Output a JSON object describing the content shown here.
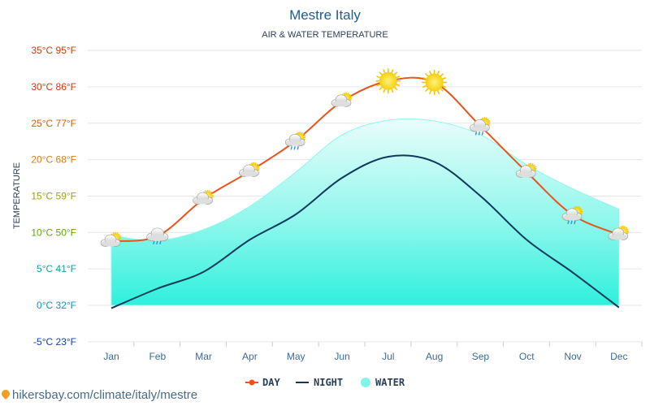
{
  "chart_data": {
    "type": "line",
    "title": "Mestre Italy",
    "subtitle": "AIR & WATER TEMPERATURE",
    "ylabel": "TEMPERATURE",
    "ylim": [
      -5,
      35
    ],
    "yticks": [
      {
        "value": 35,
        "label": "35°C 95°F",
        "color": "#d43a0a"
      },
      {
        "value": 30,
        "label": "30°C 86°F",
        "color": "#d43a0a"
      },
      {
        "value": 25,
        "label": "25°C 77°F",
        "color": "#e05a0a"
      },
      {
        "value": 20,
        "label": "20°C 68°F",
        "color": "#e07a10"
      },
      {
        "value": 15,
        "label": "15°C 59°F",
        "color": "#a0a010"
      },
      {
        "value": 10,
        "label": "10°C 50°F",
        "color": "#6aa010"
      },
      {
        "value": 5,
        "label": "5°C 41°F",
        "color": "#10a0a0"
      },
      {
        "value": 0,
        "label": "0°C 32°F",
        "color": "#1890c0"
      },
      {
        "value": -5,
        "label": "-5°C 23°F",
        "color": "#1040b0"
      }
    ],
    "categories": [
      "Jan",
      "Feb",
      "Mar",
      "Apr",
      "May",
      "Jun",
      "Jul",
      "Aug",
      "Sep",
      "Oct",
      "Nov",
      "Dec"
    ],
    "series": [
      {
        "name": "DAY",
        "color": "#e8541a",
        "values": [
          8.8,
          9.5,
          14.6,
          18.4,
          22.6,
          28.0,
          30.8,
          30.6,
          24.6,
          18.3,
          12.4,
          9.7
        ]
      },
      {
        "name": "NIGHT",
        "color": "#0d3a5c",
        "values": [
          -0.4,
          2.3,
          4.6,
          9.0,
          12.5,
          17.5,
          20.4,
          19.7,
          15.0,
          9.0,
          4.5,
          -0.3
        ]
      },
      {
        "name": "WATER",
        "color": "#7ff5ea",
        "values": [
          9.6,
          8.9,
          10.4,
          13.6,
          18.3,
          23.4,
          25.4,
          25.3,
          23.4,
          19.3,
          16.0,
          13.2
        ]
      }
    ],
    "weather_icons": [
      "sun-cloud-icon",
      "cloud-rain-icon",
      "sun-cloud-icon",
      "sun-cloud-icon",
      "sun-cloud-rain-icon",
      "sun-cloud-icon",
      "sun-icon",
      "sun-icon",
      "sun-cloud-rain-icon",
      "sun-cloud-icon",
      "sun-cloud-rain-icon",
      "sun-cloud-icon"
    ]
  },
  "legend": [
    {
      "label": "DAY"
    },
    {
      "label": "NIGHT"
    },
    {
      "label": "WATER"
    }
  ],
  "source": "hikersbay.com/climate/italy/mestre"
}
